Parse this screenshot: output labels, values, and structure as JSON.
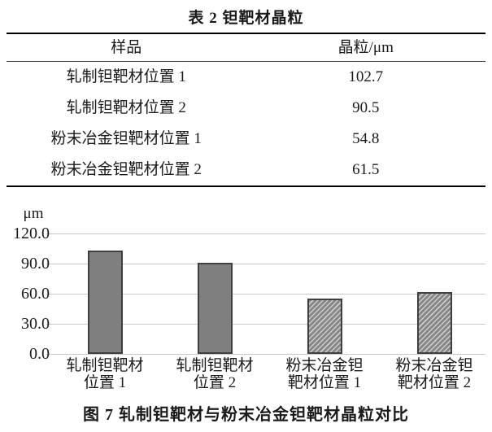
{
  "table": {
    "title": "表 2  钽靶材晶粒",
    "columns": [
      "样品",
      "晶粒/μm"
    ],
    "rows": [
      {
        "sample": "轧制钽靶材位置 1",
        "grain": "102.7"
      },
      {
        "sample": "轧制钽靶材位置 2",
        "grain": "90.5"
      },
      {
        "sample": "粉末冶金钽靶材位置 1",
        "grain": "54.8"
      },
      {
        "sample": "粉末冶金钽靶材位置 2",
        "grain": "61.5"
      }
    ]
  },
  "chart_data": {
    "type": "bar",
    "title": "图 7  轧制钽靶材与粉末冶金钽靶材晶粒对比",
    "unit_label": "μm",
    "ylabel": "μm",
    "xlabel": "",
    "categories": [
      "轧制钽靶材\n位置 1",
      "轧制钽靶材\n位置 2",
      "粉末冶金钽\n靶材位置 1",
      "粉末冶金钽\n靶材位置 2"
    ],
    "values": [
      102.7,
      90.5,
      54.8,
      61.5
    ],
    "bar_patterns": [
      "solid",
      "solid",
      "hatched",
      "hatched"
    ],
    "yticks": [
      120.0,
      90.0,
      60.0,
      30.0,
      0.0
    ],
    "ylim": [
      0,
      120
    ],
    "grid": true,
    "legend_position": "none",
    "colors": {
      "bar_fill": "#7f7f7f",
      "bar_border": "#3f3f3f",
      "gridline": "#c9c9c9",
      "text": "#1a1a1a"
    }
  },
  "caption": "图 7  轧制钽靶材与粉末冶金钽靶材晶粒对比"
}
